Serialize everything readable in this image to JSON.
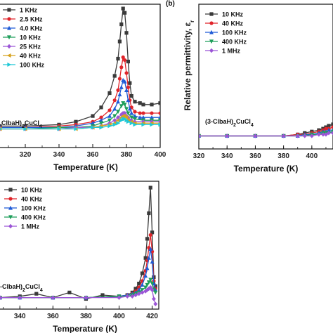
{
  "chart_data": [
    {
      "type": "line",
      "panel": "a",
      "panel_label": "",
      "xlabel": "Temperature (K)",
      "ylabel": "",
      "compound_label": [
        "Clba",
        "H",
        ")",
        "2",
        "CuCl",
        "4"
      ],
      "xlim": [
        305,
        400
      ],
      "ylim": [
        0,
        100
      ],
      "xticks": [
        320,
        340,
        360,
        380,
        400
      ],
      "legend_position": "top-left",
      "series": [
        {
          "name": "1 KHz",
          "color": "#3a3a3a",
          "marker": "square",
          "x": [
            305,
            320,
            340,
            350,
            360,
            365,
            370,
            373,
            375,
            376,
            377,
            378,
            379,
            380,
            381,
            382,
            383,
            385,
            388,
            390,
            395,
            400
          ],
          "y": [
            15,
            15,
            16,
            18,
            22,
            28,
            38,
            50,
            62,
            74,
            86,
            97,
            94,
            80,
            60,
            45,
            36,
            32,
            31,
            30,
            30,
            31
          ]
        },
        {
          "name": "2.5 KHz",
          "color": "#e0242a",
          "marker": "circle",
          "x": [
            305,
            320,
            340,
            350,
            360,
            365,
            370,
            373,
            375,
            376,
            377,
            378,
            379,
            380,
            381,
            382,
            383,
            385,
            388,
            390,
            395,
            400
          ],
          "y": [
            14,
            14,
            15,
            16,
            18,
            21,
            26,
            33,
            40,
            48,
            56,
            63,
            61,
            52,
            42,
            33,
            28,
            25,
            24,
            24,
            24,
            24
          ]
        },
        {
          "name": "4.0 KHz",
          "color": "#1f5bd6",
          "marker": "triangle-up",
          "x": [
            305,
            320,
            340,
            350,
            360,
            365,
            370,
            373,
            375,
            376,
            377,
            378,
            379,
            380,
            381,
            382,
            383,
            385,
            388,
            390,
            395,
            400
          ],
          "y": [
            14,
            14,
            14,
            15,
            17,
            19,
            22,
            27,
            32,
            37,
            42,
            47,
            46,
            40,
            33,
            27,
            24,
            22,
            21,
            21,
            21,
            21
          ]
        },
        {
          "name": "10 KHz",
          "color": "#1e9e5a",
          "marker": "triangle-down",
          "x": [
            305,
            320,
            340,
            350,
            360,
            365,
            370,
            373,
            375,
            377,
            378,
            379,
            380,
            381,
            383,
            385,
            390,
            395,
            400
          ],
          "y": [
            13,
            13,
            14,
            14,
            15,
            17,
            19,
            22,
            25,
            29,
            31,
            30,
            27,
            24,
            21,
            20,
            19,
            19,
            19
          ]
        },
        {
          "name": "25 KHz",
          "color": "#9b55d6",
          "marker": "diamond",
          "x": [
            305,
            320,
            340,
            350,
            360,
            365,
            370,
            373,
            375,
            377,
            378,
            379,
            380,
            381,
            383,
            385,
            390,
            395,
            400
          ],
          "y": [
            13,
            13,
            13,
            14,
            14,
            15,
            17,
            19,
            21,
            23,
            24,
            24,
            22,
            21,
            19,
            18,
            18,
            18,
            18
          ]
        },
        {
          "name": "40 KHz",
          "color": "#d6a21e",
          "marker": "triangle-left",
          "x": [
            305,
            320,
            340,
            350,
            360,
            365,
            370,
            373,
            375,
            377,
            378,
            379,
            380,
            381,
            383,
            385,
            390,
            395,
            400
          ],
          "y": [
            13,
            13,
            13,
            13,
            14,
            15,
            16,
            17,
            19,
            21,
            22,
            22,
            21,
            19,
            18,
            17,
            17,
            17,
            17
          ]
        },
        {
          "name": "100 KHz",
          "color": "#1ec8d6",
          "marker": "triangle-right",
          "x": [
            305,
            320,
            340,
            350,
            360,
            365,
            370,
            373,
            375,
            377,
            378,
            379,
            380,
            381,
            383,
            385,
            390,
            395,
            400
          ],
          "y": [
            13,
            13,
            13,
            13,
            14,
            14,
            15,
            16,
            17,
            19,
            20,
            20,
            19,
            18,
            17,
            16,
            16,
            16,
            16
          ]
        }
      ]
    },
    {
      "type": "line",
      "panel": "b",
      "panel_label": "(b)",
      "xlabel": "Temperature (K)",
      "ylabel": "Relative permittivity, ε",
      "ylabel_sub": "r",
      "compound_label": [
        "(3-Clba",
        "H",
        ")",
        "2",
        "CuCl",
        "4"
      ],
      "xlim": [
        320,
        415
      ],
      "ylim": [
        0,
        100
      ],
      "xticks": [
        320,
        340,
        360,
        380,
        400
      ],
      "legend_position": "top-left",
      "series": [
        {
          "name": "10 KHz",
          "color": "#3a3a3a",
          "marker": "square",
          "x": [
            320,
            340,
            360,
            380,
            390,
            395,
            400,
            405,
            408,
            410,
            412,
            415
          ],
          "y": [
            9,
            9,
            9,
            9,
            10,
            11,
            12,
            13,
            14,
            15,
            16,
            17
          ]
        },
        {
          "name": "40 KHz",
          "color": "#e0242a",
          "marker": "circle",
          "x": [
            320,
            340,
            360,
            380,
            390,
            395,
            400,
            405,
            408,
            410,
            412,
            415
          ],
          "y": [
            9,
            9,
            9,
            9,
            10,
            10,
            11,
            12,
            13,
            14,
            14,
            15
          ]
        },
        {
          "name": "100 KHz",
          "color": "#1f5bd6",
          "marker": "triangle-up",
          "x": [
            320,
            340,
            360,
            380,
            390,
            395,
            400,
            405,
            408,
            410,
            412,
            415
          ],
          "y": [
            9,
            9,
            9,
            9,
            9,
            10,
            10,
            11,
            12,
            12,
            13,
            13
          ]
        },
        {
          "name": "400 KHz",
          "color": "#1e9e5a",
          "marker": "triangle-down",
          "x": [
            320,
            340,
            360,
            380,
            390,
            395,
            400,
            405,
            408,
            410,
            412,
            415
          ],
          "y": [
            9,
            9,
            9,
            9,
            9,
            9,
            10,
            10,
            11,
            11,
            11,
            12
          ]
        },
        {
          "name": "1 MHz",
          "color": "#9b55d6",
          "marker": "diamond",
          "x": [
            320,
            340,
            360,
            380,
            390,
            395,
            400,
            405,
            408,
            410,
            412,
            415
          ],
          "y": [
            9,
            9,
            9,
            9,
            9,
            9,
            9,
            10,
            10,
            10,
            11,
            11
          ]
        }
      ]
    },
    {
      "type": "line",
      "panel": "c",
      "panel_label": "",
      "xlabel": "Temperature (K)",
      "ylabel": "",
      "compound_label": [
        "-Clba",
        "H",
        ")",
        "2",
        "CuCl",
        "4"
      ],
      "xlim": [
        328,
        424
      ],
      "ylim": [
        0,
        100
      ],
      "xticks": [
        340,
        360,
        380,
        400,
        420
      ],
      "legend_position": "top-left",
      "series": [
        {
          "name": "10 KHz",
          "color": "#3a3a3a",
          "marker": "square",
          "x": [
            328,
            340,
            350,
            360,
            370,
            380,
            390,
            400,
            405,
            408,
            410,
            412,
            414,
            416,
            417,
            418,
            419,
            420,
            421,
            422
          ],
          "y": [
            9,
            10,
            12,
            9,
            13,
            8,
            11,
            10,
            11,
            13,
            16,
            20,
            28,
            40,
            55,
            75,
            95,
            60,
            25,
            18
          ]
        },
        {
          "name": "40 KHz",
          "color": "#e0242a",
          "marker": "circle",
          "x": [
            328,
            340,
            360,
            380,
            400,
            405,
            408,
            410,
            412,
            414,
            416,
            417,
            418,
            419,
            420,
            421,
            422
          ],
          "y": [
            9,
            9,
            9,
            9,
            10,
            11,
            12,
            14,
            17,
            22,
            30,
            38,
            48,
            58,
            45,
            22,
            16
          ]
        },
        {
          "name": "100 KHz",
          "color": "#1f5bd6",
          "marker": "triangle-up",
          "x": [
            328,
            340,
            360,
            380,
            400,
            405,
            408,
            410,
            412,
            414,
            416,
            417,
            418,
            419,
            420,
            421,
            422
          ],
          "y": [
            9,
            9,
            9,
            9,
            10,
            11,
            12,
            13,
            15,
            19,
            26,
            32,
            40,
            47,
            37,
            20,
            15
          ]
        },
        {
          "name": "400 KHz",
          "color": "#1e9e5a",
          "marker": "triangle-down",
          "x": [
            328,
            340,
            360,
            380,
            400,
            405,
            408,
            410,
            412,
            414,
            416,
            417,
            418,
            419,
            420,
            421,
            422
          ],
          "y": [
            9,
            9,
            9,
            9,
            10,
            10,
            11,
            12,
            13,
            15,
            17,
            19,
            21,
            23,
            20,
            15,
            13
          ]
        },
        {
          "name": "1 MHz",
          "color": "#9b55d6",
          "marker": "diamond",
          "x": [
            328,
            340,
            360,
            380,
            400,
            405,
            408,
            410,
            412,
            414,
            416,
            417,
            418,
            419,
            420,
            421,
            422
          ],
          "y": [
            9,
            9,
            9,
            9,
            9,
            10,
            10,
            11,
            12,
            13,
            14,
            15,
            16,
            17,
            15,
            8,
            4
          ]
        }
      ]
    }
  ]
}
